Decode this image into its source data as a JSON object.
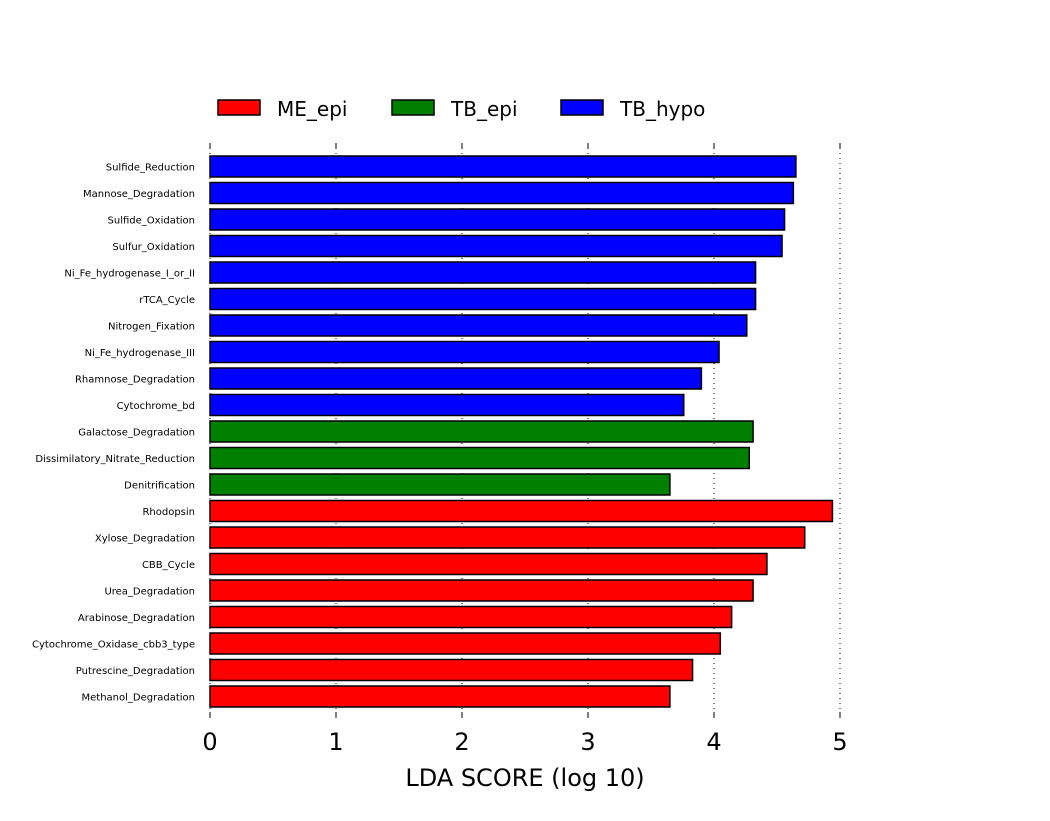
{
  "chart_data": {
    "type": "bar",
    "orientation": "horizontal",
    "title": "",
    "xlabel": "LDA SCORE (log 10)",
    "ylabel": "",
    "xlim": [
      0,
      5
    ],
    "xticks": [
      "0",
      "1",
      "2",
      "3",
      "4",
      "5"
    ],
    "grid": "vertical dotted",
    "legend_position": "top",
    "legend": [
      {
        "name": "ME_epi",
        "color": "#ff0000"
      },
      {
        "name": "TB_epi",
        "color": "#008000"
      },
      {
        "name": "TB_hypo",
        "color": "#0000ff"
      }
    ],
    "categories": [
      "Sulfide_Reduction",
      "Mannose_Degradation",
      "Sulfide_Oxidation",
      "Sulfur_Oxidation",
      "Ni_Fe_hydrogenase_I_or_II",
      "rTCA_Cycle",
      "Nitrogen_Fixation",
      "Ni_Fe_hydrogenase_III",
      "Rhamnose_Degradation",
      "Cytochrome_bd",
      "Galactose_Degradation",
      "Dissimilatory_Nitrate_Reduction",
      "Denitrification",
      "Rhodopsin",
      "Xylose_Degradation",
      "CBB_Cycle",
      "Urea_Degradation",
      "Arabinose_Degradation",
      "Cytochrome_Oxidase_cbb3_type",
      "Putrescine_Degradation",
      "Methanol_Degradation"
    ],
    "values": [
      4.65,
      4.63,
      4.56,
      4.54,
      4.33,
      4.33,
      4.26,
      4.04,
      3.9,
      3.76,
      4.31,
      4.28,
      3.65,
      4.94,
      4.72,
      4.42,
      4.31,
      4.14,
      4.05,
      3.83,
      3.65
    ],
    "groups": [
      "TB_hypo",
      "TB_hypo",
      "TB_hypo",
      "TB_hypo",
      "TB_hypo",
      "TB_hypo",
      "TB_hypo",
      "TB_hypo",
      "TB_hypo",
      "TB_hypo",
      "TB_epi",
      "TB_epi",
      "TB_epi",
      "ME_epi",
      "ME_epi",
      "ME_epi",
      "ME_epi",
      "ME_epi",
      "ME_epi",
      "ME_epi",
      "ME_epi"
    ]
  }
}
